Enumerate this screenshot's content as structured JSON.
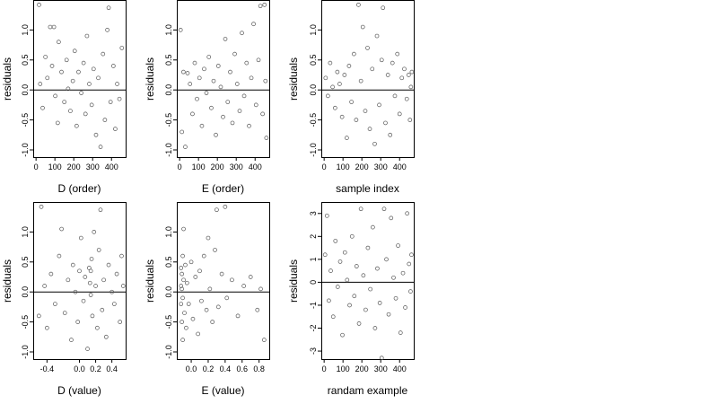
{
  "chart_data": [
    {
      "type": "scatter",
      "xlabel": "D (order)",
      "ylabel": "residuals",
      "xlim": [
        -15,
        475
      ],
      "ylim": [
        -1.12,
        1.5
      ],
      "xticks": [
        0,
        100,
        200,
        300,
        400
      ],
      "xtick_labels": [
        "0",
        "100",
        "200",
        "300",
        "400"
      ],
      "yticks": [
        -1.0,
        -0.5,
        0.0,
        0.5,
        1.0
      ],
      "ytick_labels": [
        "-1.0",
        "-0.5",
        "0.0",
        "0.5",
        "1.0"
      ],
      "hline": 0,
      "points": [
        [
          16,
          1.42
        ],
        [
          22,
          0.1
        ],
        [
          35,
          -0.3
        ],
        [
          50,
          0.55
        ],
        [
          60,
          0.2
        ],
        [
          75,
          1.05
        ],
        [
          85,
          0.4
        ],
        [
          95,
          1.05
        ],
        [
          102,
          -0.1
        ],
        [
          115,
          -0.55
        ],
        [
          120,
          0.8
        ],
        [
          135,
          0.3
        ],
        [
          150,
          -0.2
        ],
        [
          162,
          0.5
        ],
        [
          170,
          0.02
        ],
        [
          182,
          -0.35
        ],
        [
          195,
          0.15
        ],
        [
          205,
          0.65
        ],
        [
          215,
          -0.6
        ],
        [
          225,
          0.3
        ],
        [
          240,
          -0.05
        ],
        [
          252,
          0.45
        ],
        [
          262,
          -0.4
        ],
        [
          270,
          0.9
        ],
        [
          282,
          0.1
        ],
        [
          295,
          -0.25
        ],
        [
          305,
          0.35
        ],
        [
          318,
          -0.75
        ],
        [
          330,
          0.2
        ],
        [
          342,
          -0.95
        ],
        [
          355,
          0.6
        ],
        [
          365,
          -0.5
        ],
        [
          378,
          1.0
        ],
        [
          385,
          1.37
        ],
        [
          395,
          -0.2
        ],
        [
          410,
          0.4
        ],
        [
          420,
          -0.65
        ],
        [
          430,
          0.1
        ],
        [
          442,
          -0.15
        ],
        [
          455,
          0.7
        ]
      ]
    },
    {
      "type": "scatter",
      "xlabel": "E (order)",
      "ylabel": "residuals",
      "xlim": [
        -15,
        475
      ],
      "ylim": [
        -1.12,
        1.5
      ],
      "xticks": [
        0,
        100,
        200,
        300,
        400
      ],
      "xtick_labels": [
        "0",
        "100",
        "200",
        "300",
        "400"
      ],
      "yticks": [
        -1.0,
        -0.5,
        0.0,
        0.5,
        1.0
      ],
      "ytick_labels": [
        "-1.0",
        "-0.5",
        "0.0",
        "0.5",
        "1.0"
      ],
      "hline": 0,
      "points": [
        [
          5,
          1.0
        ],
        [
          12,
          -0.7
        ],
        [
          20,
          0.3
        ],
        [
          30,
          -0.95
        ],
        [
          42,
          0.28
        ],
        [
          55,
          0.1
        ],
        [
          68,
          -0.4
        ],
        [
          80,
          0.45
        ],
        [
          92,
          -0.15
        ],
        [
          105,
          0.2
        ],
        [
          118,
          -0.6
        ],
        [
          130,
          0.35
        ],
        [
          142,
          -0.05
        ],
        [
          155,
          0.55
        ],
        [
          168,
          -0.3
        ],
        [
          180,
          0.15
        ],
        [
          192,
          -0.75
        ],
        [
          205,
          0.4
        ],
        [
          218,
          0.05
        ],
        [
          230,
          -0.45
        ],
        [
          242,
          0.85
        ],
        [
          255,
          -0.2
        ],
        [
          268,
          0.3
        ],
        [
          280,
          -0.55
        ],
        [
          292,
          0.6
        ],
        [
          305,
          0.1
        ],
        [
          318,
          -0.35
        ],
        [
          330,
          0.95
        ],
        [
          342,
          -0.1
        ],
        [
          355,
          0.45
        ],
        [
          368,
          -0.6
        ],
        [
          380,
          0.2
        ],
        [
          392,
          1.1
        ],
        [
          405,
          -0.25
        ],
        [
          418,
          0.5
        ],
        [
          428,
          1.4
        ],
        [
          440,
          -0.4
        ],
        [
          450,
          1.42
        ],
        [
          455,
          0.15
        ],
        [
          460,
          -0.8
        ]
      ]
    },
    {
      "type": "scatter",
      "xlabel": "sample index",
      "ylabel": "residuals",
      "xlim": [
        -15,
        475
      ],
      "ylim": [
        -1.12,
        1.5
      ],
      "xticks": [
        0,
        100,
        200,
        300,
        400
      ],
      "xtick_labels": [
        "0",
        "100",
        "200",
        "300",
        "400"
      ],
      "yticks": [
        -1.0,
        -0.5,
        0.0,
        0.5,
        1.0
      ],
      "ytick_labels": [
        "-1.0",
        "-0.5",
        "0.0",
        "0.5",
        "1.0"
      ],
      "hline": 0,
      "points": [
        [
          8,
          0.2
        ],
        [
          20,
          -0.1
        ],
        [
          32,
          0.45
        ],
        [
          45,
          0.05
        ],
        [
          58,
          -0.3
        ],
        [
          70,
          0.3
        ],
        [
          82,
          0.1
        ],
        [
          95,
          -0.45
        ],
        [
          108,
          0.25
        ],
        [
          120,
          -0.8
        ],
        [
          132,
          0.4
        ],
        [
          145,
          -0.2
        ],
        [
          158,
          0.6
        ],
        [
          170,
          -0.5
        ],
        [
          182,
          1.42
        ],
        [
          195,
          0.15
        ],
        [
          205,
          1.05
        ],
        [
          218,
          -0.35
        ],
        [
          230,
          0.7
        ],
        [
          242,
          -0.65
        ],
        [
          255,
          0.35
        ],
        [
          268,
          -0.9
        ],
        [
          280,
          0.9
        ],
        [
          292,
          -0.25
        ],
        [
          305,
          0.5
        ],
        [
          312,
          1.37
        ],
        [
          325,
          -0.55
        ],
        [
          338,
          0.25
        ],
        [
          350,
          -0.75
        ],
        [
          362,
          0.45
        ],
        [
          375,
          -0.1
        ],
        [
          388,
          0.6
        ],
        [
          400,
          -0.4
        ],
        [
          412,
          0.2
        ],
        [
          425,
          0.35
        ],
        [
          438,
          -0.15
        ],
        [
          448,
          0.25
        ],
        [
          455,
          -0.5
        ],
        [
          460,
          0.05
        ],
        [
          465,
          0.3
        ]
      ]
    },
    {
      "type": "scatter",
      "xlabel": "D (value)",
      "ylabel": "residuals",
      "xlim": [
        -0.57,
        0.57
      ],
      "ylim": [
        -1.12,
        1.5
      ],
      "xticks": [
        -0.4,
        0.0,
        0.2,
        0.4
      ],
      "xtick_labels": [
        "-0.4",
        "0.0",
        "0.2",
        "0.4"
      ],
      "yticks": [
        -1.0,
        -0.5,
        0.0,
        0.5,
        1.0
      ],
      "ytick_labels": [
        "-1.0",
        "-0.5",
        "0.0",
        "0.5",
        "1.0"
      ],
      "hline": 0,
      "points": [
        [
          -0.5,
          -0.4
        ],
        [
          -0.47,
          1.42
        ],
        [
          -0.43,
          0.1
        ],
        [
          -0.4,
          -0.6
        ],
        [
          -0.35,
          0.3
        ],
        [
          -0.3,
          -0.2
        ],
        [
          -0.25,
          0.6
        ],
        [
          -0.22,
          1.05
        ],
        [
          -0.18,
          -0.35
        ],
        [
          -0.14,
          0.2
        ],
        [
          -0.1,
          -0.8
        ],
        [
          -0.08,
          0.45
        ],
        [
          -0.05,
          0.0
        ],
        [
          -0.02,
          -0.5
        ],
        [
          0.0,
          0.35
        ],
        [
          0.02,
          0.9
        ],
        [
          0.05,
          -0.15
        ],
        [
          0.07,
          0.25
        ],
        [
          0.1,
          -0.95
        ],
        [
          0.12,
          0.4
        ],
        [
          0.13,
          0.15
        ],
        [
          0.14,
          0.35
        ],
        [
          0.14,
          -0.05
        ],
        [
          0.15,
          0.55
        ],
        [
          0.16,
          -0.4
        ],
        [
          0.18,
          1.0
        ],
        [
          0.2,
          0.1
        ],
        [
          0.22,
          -0.6
        ],
        [
          0.24,
          0.7
        ],
        [
          0.26,
          1.37
        ],
        [
          0.28,
          -0.3
        ],
        [
          0.3,
          0.2
        ],
        [
          0.33,
          -0.75
        ],
        [
          0.36,
          0.45
        ],
        [
          0.4,
          0.0
        ],
        [
          0.43,
          -0.2
        ],
        [
          0.46,
          0.3
        ],
        [
          0.5,
          -0.5
        ],
        [
          0.52,
          0.6
        ],
        [
          0.54,
          0.1
        ]
      ]
    },
    {
      "type": "scatter",
      "xlabel": "E (value)",
      "ylabel": "residuals",
      "xlim": [
        -0.17,
        0.92
      ],
      "ylim": [
        -1.12,
        1.5
      ],
      "xticks": [
        0.0,
        0.2,
        0.4,
        0.6,
        0.8
      ],
      "xtick_labels": [
        "0.0",
        "0.2",
        "0.4",
        "0.6",
        "0.8"
      ],
      "yticks": [
        -1.0,
        -0.5,
        0.0,
        0.5,
        1.0
      ],
      "ytick_labels": [
        "-1.0",
        "-0.5",
        "0.0",
        "0.5",
        "1.0"
      ],
      "hline": 0,
      "points": [
        [
          -0.12,
          0.4
        ],
        [
          -0.12,
          0.1
        ],
        [
          -0.12,
          -0.2
        ],
        [
          -0.11,
          0.3
        ],
        [
          -0.11,
          -0.5
        ],
        [
          -0.11,
          0.05
        ],
        [
          -0.1,
          0.6
        ],
        [
          -0.1,
          -0.1
        ],
        [
          -0.1,
          -0.8
        ],
        [
          -0.09,
          0.2
        ],
        [
          -0.09,
          1.05
        ],
        [
          -0.08,
          -0.35
        ],
        [
          -0.07,
          0.45
        ],
        [
          -0.06,
          -0.6
        ],
        [
          -0.05,
          0.15
        ],
        [
          -0.03,
          -0.2
        ],
        [
          0.0,
          0.5
        ],
        [
          0.02,
          -0.45
        ],
        [
          0.05,
          0.25
        ],
        [
          0.08,
          -0.7
        ],
        [
          0.1,
          0.35
        ],
        [
          0.12,
          -0.15
        ],
        [
          0.15,
          0.6
        ],
        [
          0.18,
          -0.3
        ],
        [
          0.2,
          0.9
        ],
        [
          0.22,
          0.05
        ],
        [
          0.25,
          -0.5
        ],
        [
          0.28,
          0.7
        ],
        [
          0.3,
          1.37
        ],
        [
          0.32,
          -0.25
        ],
        [
          0.36,
          0.3
        ],
        [
          0.4,
          1.42
        ],
        [
          0.42,
          -0.1
        ],
        [
          0.48,
          0.2
        ],
        [
          0.55,
          -0.4
        ],
        [
          0.62,
          0.1
        ],
        [
          0.7,
          0.25
        ],
        [
          0.78,
          -0.3
        ],
        [
          0.82,
          0.05
        ],
        [
          0.86,
          -0.8
        ]
      ]
    },
    {
      "type": "scatter",
      "xlabel": "randam example",
      "ylabel": "residuals",
      "xlim": [
        -15,
        475
      ],
      "ylim": [
        -3.35,
        3.5
      ],
      "xticks": [
        0,
        100,
        200,
        300,
        400
      ],
      "xtick_labels": [
        "0",
        "100",
        "200",
        "300",
        "400"
      ],
      "yticks": [
        -3,
        -2,
        -1,
        0,
        1,
        2,
        3
      ],
      "ytick_labels": [
        "-3",
        "-2",
        "-1",
        "0",
        "1",
        "2",
        "3"
      ],
      "hline": 0,
      "points": [
        [
          5,
          1.2
        ],
        [
          15,
          2.9
        ],
        [
          25,
          -0.8
        ],
        [
          35,
          0.5
        ],
        [
          48,
          -1.5
        ],
        [
          60,
          1.8
        ],
        [
          72,
          -0.2
        ],
        [
          85,
          0.9
        ],
        [
          97,
          -2.3
        ],
        [
          110,
          1.3
        ],
        [
          122,
          0.1
        ],
        [
          135,
          -1.0
        ],
        [
          148,
          2.0
        ],
        [
          160,
          -0.6
        ],
        [
          172,
          0.7
        ],
        [
          185,
          -1.8
        ],
        [
          195,
          3.2
        ],
        [
          208,
          0.3
        ],
        [
          220,
          -1.2
        ],
        [
          232,
          1.5
        ],
        [
          245,
          -0.3
        ],
        [
          258,
          2.4
        ],
        [
          270,
          -2.0
        ],
        [
          282,
          0.6
        ],
        [
          295,
          -0.9
        ],
        [
          305,
          -3.3
        ],
        [
          318,
          3.2
        ],
        [
          330,
          1.0
        ],
        [
          342,
          -1.4
        ],
        [
          355,
          2.8
        ],
        [
          368,
          0.2
        ],
        [
          380,
          -0.7
        ],
        [
          392,
          1.6
        ],
        [
          405,
          -2.2
        ],
        [
          418,
          0.4
        ],
        [
          430,
          -1.1
        ],
        [
          440,
          3.0
        ],
        [
          450,
          0.8
        ],
        [
          458,
          -0.4
        ],
        [
          463,
          1.2
        ]
      ]
    }
  ]
}
